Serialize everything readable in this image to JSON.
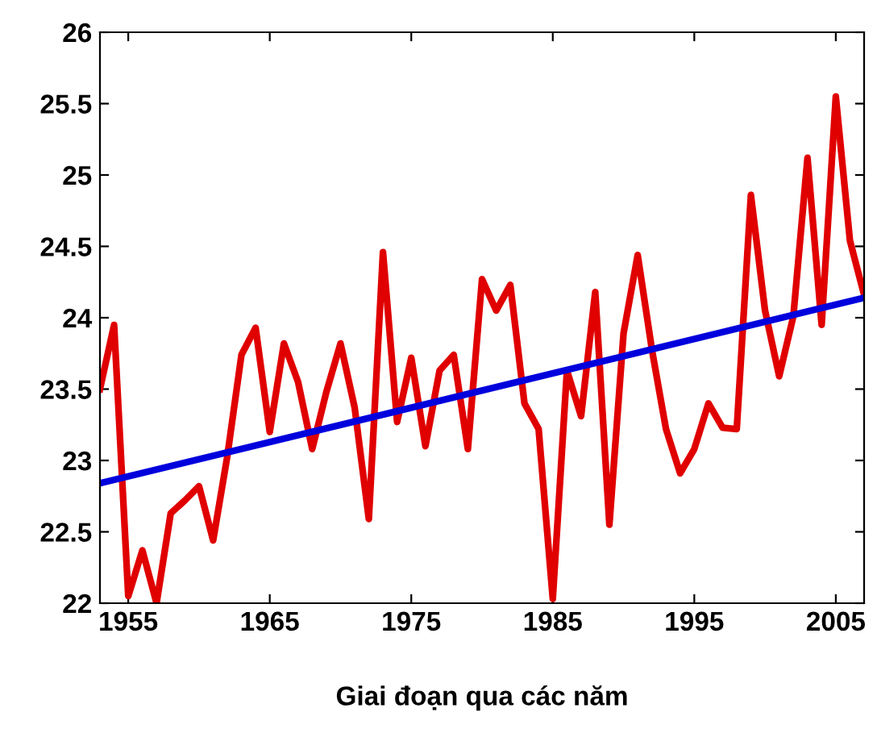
{
  "chart_data": {
    "type": "line",
    "xlabel": "Giai đoạn qua các năm",
    "x": [
      1953,
      1954,
      1955,
      1956,
      1957,
      1958,
      1959,
      1960,
      1961,
      1962,
      1963,
      1964,
      1965,
      1966,
      1967,
      1968,
      1969,
      1970,
      1971,
      1972,
      1973,
      1974,
      1975,
      1976,
      1977,
      1978,
      1979,
      1980,
      1981,
      1982,
      1983,
      1984,
      1985,
      1986,
      1987,
      1988,
      1989,
      1990,
      1991,
      1992,
      1993,
      1994,
      1995,
      1996,
      1997,
      1998,
      1999,
      2000,
      2001,
      2002,
      2003,
      2004,
      2005,
      2006,
      2007
    ],
    "series": [
      {
        "color": "#e00000",
        "values": [
          23.5,
          23.95,
          22.05,
          22.37,
          22.0,
          22.63,
          22.72,
          22.82,
          22.44,
          23.03,
          23.74,
          23.93,
          23.2,
          23.82,
          23.55,
          23.08,
          23.48,
          23.82,
          23.37,
          22.59,
          24.46,
          23.27,
          23.72,
          23.1,
          23.63,
          23.74,
          23.08,
          24.27,
          24.05,
          24.23,
          23.4,
          23.22,
          22.03,
          23.63,
          23.31,
          24.18,
          22.55,
          23.89,
          24.44,
          23.78,
          23.22,
          22.91,
          23.08,
          23.4,
          23.23,
          23.22,
          24.86,
          24.05,
          23.59,
          24.01,
          25.12,
          23.95,
          25.55,
          24.54,
          24.16
        ]
      },
      {
        "color": "#0000dd",
        "x": [
          1953,
          2007
        ],
        "values": [
          22.84,
          24.14
        ]
      }
    ],
    "xlim": [
      1953,
      2007
    ],
    "ylim": [
      22,
      26
    ],
    "xticks": [
      1955,
      1965,
      1975,
      1985,
      1995,
      2005
    ],
    "yticks": [
      22,
      22.5,
      23,
      23.5,
      24,
      24.5,
      25,
      25.5,
      26
    ],
    "grid": false,
    "legend": false,
    "marker": "none",
    "line_style": "solid"
  }
}
